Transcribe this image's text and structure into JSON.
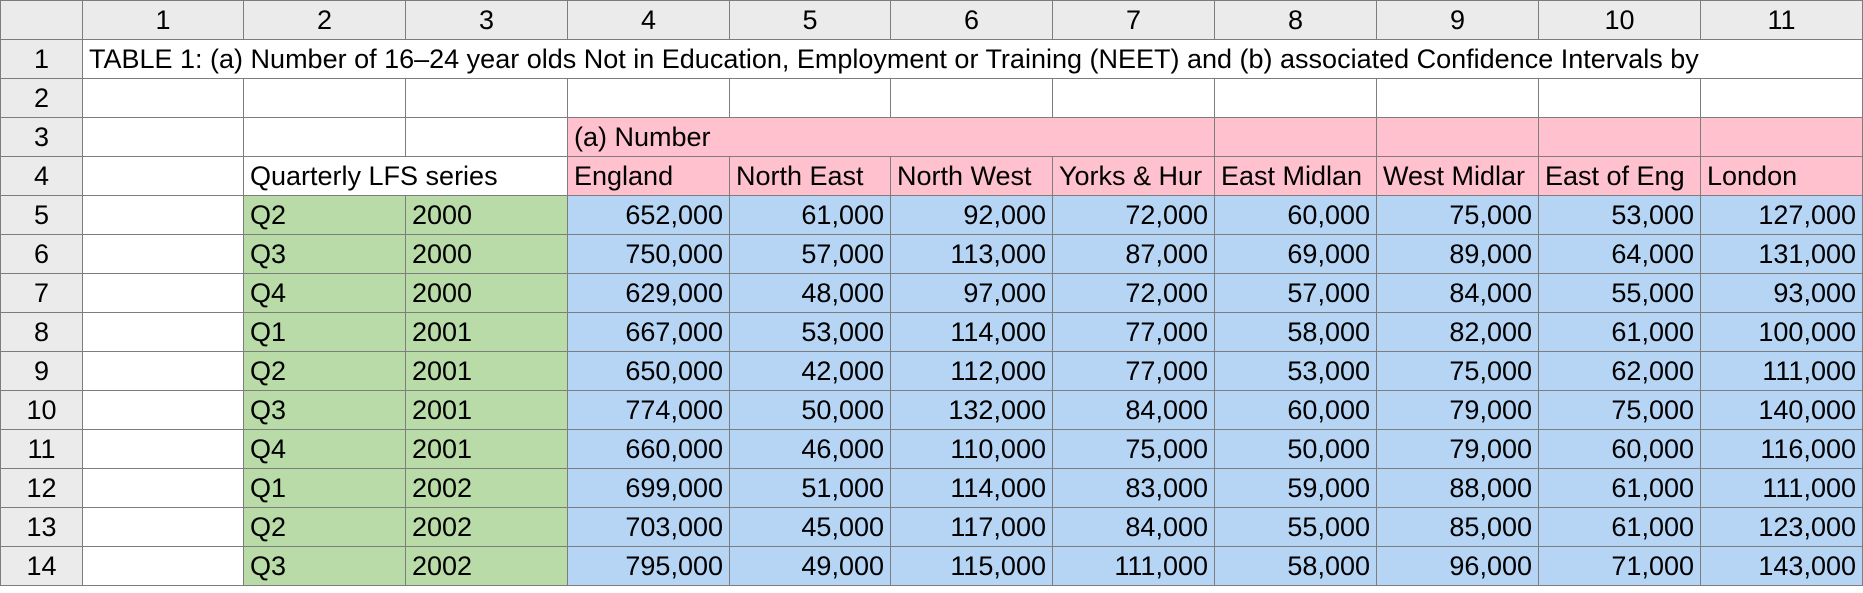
{
  "column_headers": [
    "1",
    "2",
    "3",
    "4",
    "5",
    "6",
    "7",
    "8",
    "9",
    "10",
    "11"
  ],
  "row_headers": [
    "1",
    "2",
    "3",
    "4",
    "5",
    "6",
    "7",
    "8",
    "9",
    "10",
    "11",
    "12",
    "13",
    "14"
  ],
  "title": "TABLE 1: (a) Number of 16–24 year olds Not in Education, Employment or Training (NEET) and (b) associated Confidence Intervals by",
  "section_label": "(a) Number",
  "series_label": "Quarterly LFS series",
  "regions": [
    "England",
    "North East",
    "North West",
    "Yorks & Hur",
    "East Midlan",
    "West Midlar",
    "East of Eng",
    "London"
  ],
  "rows": [
    {
      "quarter": "Q2",
      "year": "2000",
      "values": [
        "652,000",
        "61,000",
        "92,000",
        "72,000",
        "60,000",
        "75,000",
        "53,000",
        "127,000"
      ]
    },
    {
      "quarter": "Q3",
      "year": "2000",
      "values": [
        "750,000",
        "57,000",
        "113,000",
        "87,000",
        "69,000",
        "89,000",
        "64,000",
        "131,000"
      ]
    },
    {
      "quarter": "Q4",
      "year": "2000",
      "values": [
        "629,000",
        "48,000",
        "97,000",
        "72,000",
        "57,000",
        "84,000",
        "55,000",
        "93,000"
      ]
    },
    {
      "quarter": "Q1",
      "year": "2001",
      "values": [
        "667,000",
        "53,000",
        "114,000",
        "77,000",
        "58,000",
        "82,000",
        "61,000",
        "100,000"
      ]
    },
    {
      "quarter": "Q2",
      "year": "2001",
      "values": [
        "650,000",
        "42,000",
        "112,000",
        "77,000",
        "53,000",
        "75,000",
        "62,000",
        "111,000"
      ]
    },
    {
      "quarter": "Q3",
      "year": "2001",
      "values": [
        "774,000",
        "50,000",
        "132,000",
        "84,000",
        "60,000",
        "79,000",
        "75,000",
        "140,000"
      ]
    },
    {
      "quarter": "Q4",
      "year": "2001",
      "values": [
        "660,000",
        "46,000",
        "110,000",
        "75,000",
        "50,000",
        "79,000",
        "60,000",
        "116,000"
      ]
    },
    {
      "quarter": "Q1",
      "year": "2002",
      "values": [
        "699,000",
        "51,000",
        "114,000",
        "83,000",
        "59,000",
        "88,000",
        "61,000",
        "111,000"
      ]
    },
    {
      "quarter": "Q2",
      "year": "2002",
      "values": [
        "703,000",
        "45,000",
        "117,000",
        "84,000",
        "55,000",
        "85,000",
        "61,000",
        "123,000"
      ]
    },
    {
      "quarter": "Q3",
      "year": "2002",
      "values": [
        "795,000",
        "49,000",
        "115,000",
        "111,000",
        "58,000",
        "96,000",
        "71,000",
        "143,000"
      ]
    }
  ],
  "colors": {
    "header_bg": "#ebebeb",
    "pink": "#ffc1cd",
    "green": "#b9dba7",
    "blue": "#b6d5f5"
  }
}
